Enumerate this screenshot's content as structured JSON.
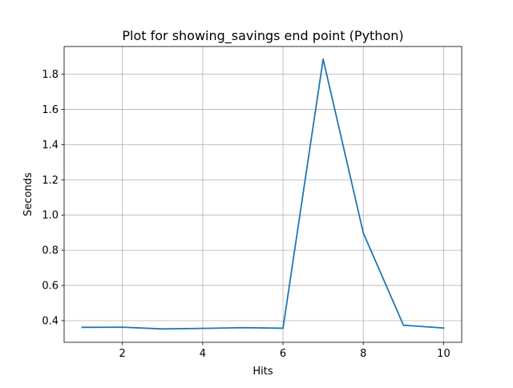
{
  "chart_data": {
    "type": "line",
    "title": "Plot for showing_savings end point (Python)",
    "xlabel": "Hits",
    "ylabel": "Seconds",
    "xlim": [
      0.55,
      10.45
    ],
    "ylim": [
      0.277,
      1.957
    ],
    "xticks": [
      2,
      4,
      6,
      8,
      10
    ],
    "yticks": [
      0.4,
      0.6,
      0.8,
      1.0,
      1.2,
      1.4,
      1.6,
      1.8
    ],
    "xtick_labels": [
      "2",
      "4",
      "6",
      "8",
      "10"
    ],
    "ytick_labels": [
      "0.4",
      "0.6",
      "0.8",
      "1.0",
      "1.2",
      "1.4",
      "1.6",
      "1.8"
    ],
    "grid": true,
    "x": [
      1,
      2,
      3,
      4,
      5,
      6,
      7,
      8,
      9,
      10
    ],
    "series": [
      {
        "values": [
          0.362,
          0.363,
          0.353,
          0.356,
          0.36,
          0.357,
          1.885,
          0.898,
          0.374,
          0.358
        ],
        "color": "#1f77b4"
      }
    ]
  }
}
